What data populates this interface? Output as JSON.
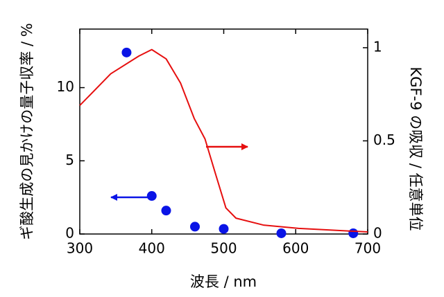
{
  "chart_data": {
    "type": "combo",
    "xlabel": "波長 / nm",
    "ylabel": "ギ酸生成の見かけの量子収率 / %",
    "y2label": "KGF-9 の吸収 / 任意単位",
    "xlim": [
      300,
      700
    ],
    "xticks": [
      300,
      400,
      500,
      600,
      700
    ],
    "ylim": [
      0,
      14
    ],
    "yticks": [
      0,
      5,
      10
    ],
    "y2lim": [
      0,
      1.1
    ],
    "y2ticks": [
      0,
      0.5,
      1
    ],
    "series": [
      {
        "type": "scatter",
        "color": "#0a14e6",
        "x": [
          365,
          400,
          420,
          460,
          500,
          580,
          680
        ],
        "values": [
          12.4,
          2.6,
          1.6,
          0.5,
          0.35,
          0.05,
          0.05
        ]
      },
      {
        "type": "line",
        "axis": "y2",
        "color": "#e60f0f",
        "x": [
          300,
          343,
          382,
          400,
          420,
          440,
          459,
          474,
          488,
          503,
          517,
          555,
          604,
          700
        ],
        "values": [
          0.69,
          0.86,
          0.955,
          0.99,
          0.94,
          0.81,
          0.62,
          0.51,
          0.33,
          0.14,
          0.085,
          0.048,
          0.03,
          0.011
        ]
      }
    ]
  }
}
